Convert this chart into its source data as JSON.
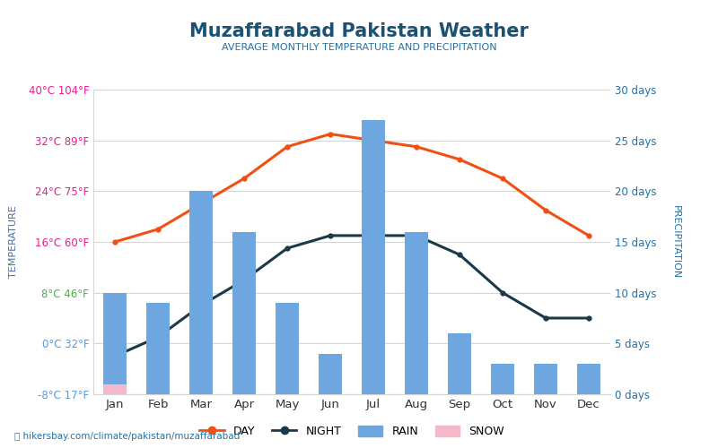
{
  "title": "Muzaffarabad Pakistan Weather",
  "subtitle": "AVERAGE MONTHLY TEMPERATURE AND PRECIPITATION",
  "months": [
    "Jan",
    "Feb",
    "Mar",
    "Apr",
    "May",
    "Jun",
    "Jul",
    "Aug",
    "Sep",
    "Oct",
    "Nov",
    "Dec"
  ],
  "day_temp": [
    16,
    18,
    22,
    26,
    31,
    33,
    32,
    31,
    29,
    26,
    21,
    17
  ],
  "night_temp": [
    -2,
    1,
    6,
    10,
    15,
    17,
    17,
    17,
    14,
    8,
    4,
    4
  ],
  "rain_days": [
    10,
    9,
    20,
    16,
    9,
    4,
    27,
    16,
    6,
    3,
    3,
    3
  ],
  "snow_days": [
    1,
    0,
    0,
    0,
    0,
    0,
    0,
    0,
    0,
    0,
    0,
    0
  ],
  "bar_color": "#6ea6e0",
  "snow_color": "#f4b8c8",
  "day_color": "#f05014",
  "night_color": "#1a3a4a",
  "title_color": "#1a5276",
  "subtitle_color": "#2471a3",
  "right_axis_color": "#2471a3",
  "temp_ticks": [
    -8,
    0,
    8,
    16,
    24,
    32,
    40
  ],
  "temp_tick_labels": [
    "-8°C 17°F",
    "0°C 32°F",
    "8°C 46°F",
    "16°C 60°F",
    "24°C 75°F",
    "32°C 89°F",
    "40°C 104°F"
  ],
  "temp_tick_colors": [
    "#5b9bd5",
    "#5b9bd5",
    "#4caf50",
    "#e91e8c",
    "#e91e8c",
    "#e91e8c",
    "#e91e8c"
  ],
  "temp_min": -8,
  "temp_max": 40,
  "precip_min": 0,
  "precip_max": 30,
  "precip_ticks": [
    0,
    5,
    10,
    15,
    20,
    25,
    30
  ],
  "precip_tick_labels": [
    "0 days",
    "5 days",
    "10 days",
    "15 days",
    "20 days",
    "25 days",
    "30 days"
  ],
  "ylabel_left": "TEMPERATURE",
  "ylabel_right": "PRECIPITATION",
  "background_color": "#ffffff",
  "grid_color": "#d5d5d5",
  "footer": "hikersbay.com/climate/pakistan/muzaffarabad"
}
